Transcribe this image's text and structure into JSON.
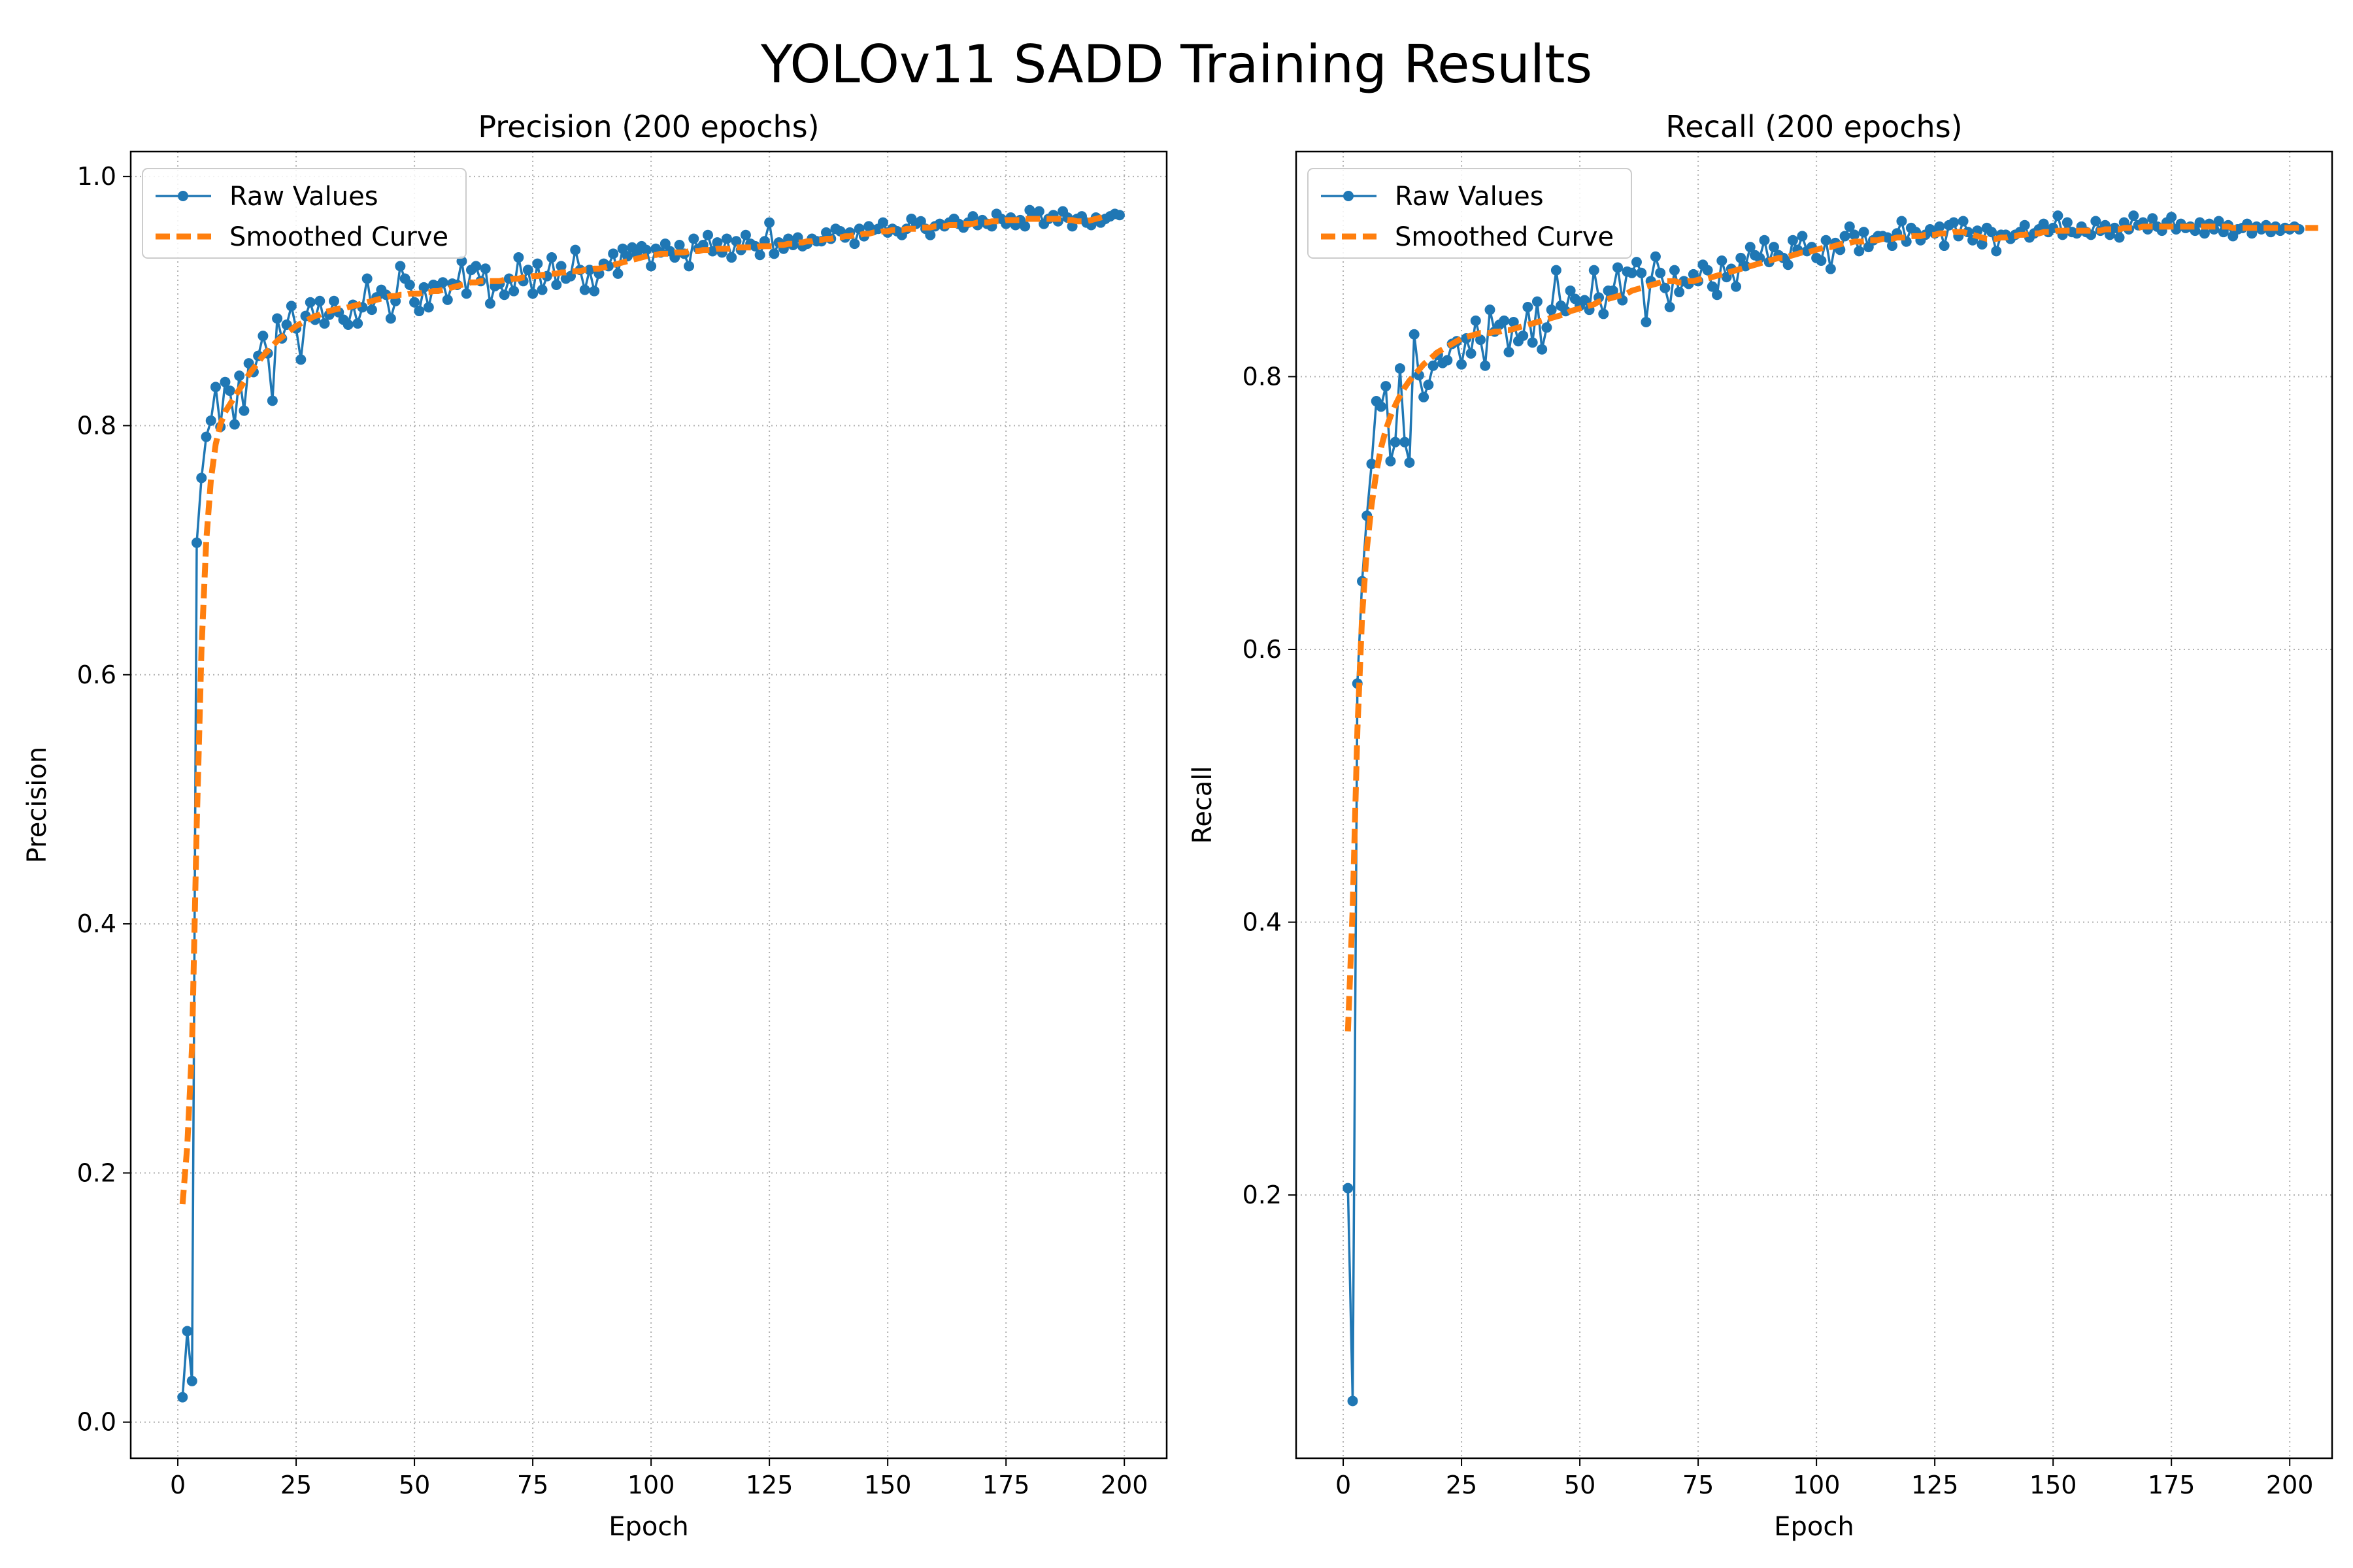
{
  "figure": {
    "title": "YOLOv11 SADD Training Results"
  },
  "colors": {
    "raw": "#1f77b4",
    "smoothed": "#ff7f0e",
    "grid": "#b0b0b0"
  },
  "chart_data": [
    {
      "type": "line",
      "title": "Precision (200 epochs)",
      "xlabel": "Epoch",
      "ylabel": "Precision",
      "xlim": [
        -9.95,
        208.95
      ],
      "ylim": [
        -0.029,
        1.02
      ],
      "xticks": [
        0,
        25,
        50,
        75,
        100,
        125,
        150,
        175,
        200
      ],
      "yticks": [
        0.0,
        0.2,
        0.4,
        0.6,
        0.8,
        1.0
      ],
      "ytick_labels": [
        "0.0",
        "0.2",
        "0.4",
        "0.6",
        "0.8",
        "1.0"
      ],
      "grid": true,
      "legend": "top-left",
      "series": [
        {
          "name": "Raw Values",
          "style": "line-markers",
          "x_start": 1,
          "x_step": 1,
          "values": [
            0.02,
            0.073,
            0.033,
            0.706,
            0.758,
            0.791,
            0.804,
            0.831,
            0.799,
            0.835,
            0.828,
            0.801,
            0.84,
            0.812,
            0.85,
            0.843,
            0.856,
            0.872,
            0.858,
            0.82,
            0.886,
            0.87,
            0.881,
            0.896,
            0.878,
            0.853,
            0.888,
            0.899,
            0.885,
            0.9,
            0.882,
            0.889,
            0.9,
            0.891,
            0.885,
            0.881,
            0.897,
            0.882,
            0.895,
            0.918,
            0.893,
            0.903,
            0.909,
            0.905,
            0.886,
            0.9,
            0.928,
            0.918,
            0.913,
            0.899,
            0.892,
            0.911,
            0.895,
            0.913,
            0.912,
            0.915,
            0.901,
            0.914,
            0.913,
            0.932,
            0.906,
            0.925,
            0.928,
            0.916,
            0.926,
            0.898,
            0.912,
            0.914,
            0.905,
            0.918,
            0.908,
            0.935,
            0.916,
            0.925,
            0.906,
            0.93,
            0.909,
            0.92,
            0.935,
            0.913,
            0.928,
            0.918,
            0.92,
            0.941,
            0.925,
            0.909,
            0.925,
            0.908,
            0.922,
            0.93,
            0.928,
            0.938,
            0.922,
            0.942,
            0.936,
            0.943,
            0.938,
            0.944,
            0.941,
            0.928,
            0.942,
            0.939,
            0.946,
            0.94,
            0.935,
            0.945,
            0.938,
            0.928,
            0.95,
            0.942,
            0.945,
            0.953,
            0.94,
            0.947,
            0.939,
            0.95,
            0.935,
            0.948,
            0.941,
            0.953,
            0.946,
            0.944,
            0.937,
            0.948,
            0.963,
            0.938,
            0.947,
            0.942,
            0.95,
            0.945,
            0.951,
            0.944,
            0.946,
            0.95,
            0.948,
            0.948,
            0.955,
            0.95,
            0.958,
            0.956,
            0.951,
            0.955,
            0.946,
            0.958,
            0.952,
            0.96,
            0.957,
            0.958,
            0.963,
            0.955,
            0.958,
            0.956,
            0.953,
            0.958,
            0.966,
            0.962,
            0.964,
            0.958,
            0.953,
            0.96,
            0.962,
            0.96,
            0.963,
            0.966,
            0.962,
            0.959,
            0.963,
            0.968,
            0.961,
            0.965,
            0.962,
            0.96,
            0.97,
            0.966,
            0.962,
            0.967,
            0.961,
            0.965,
            0.96,
            0.973,
            0.968,
            0.972,
            0.962,
            0.966,
            0.969,
            0.964,
            0.972,
            0.967,
            0.96,
            0.966,
            0.968,
            0.963,
            0.961,
            0.967,
            0.963,
            0.966,
            0.968,
            0.97,
            0.969
          ]
        },
        {
          "name": "Smoothed Curve",
          "style": "dashed",
          "x_start": 1,
          "x_step": 1,
          "values": [
            0.175,
            0.222,
            0.301,
            0.48,
            0.62,
            0.707,
            0.757,
            0.785,
            0.801,
            0.811,
            0.817,
            0.823,
            0.829,
            0.835,
            0.841,
            0.846,
            0.851,
            0.856,
            0.86,
            0.864,
            0.868,
            0.871,
            0.874,
            0.877,
            0.88,
            0.882,
            0.884,
            0.886,
            0.888,
            0.889,
            0.891,
            0.892,
            0.893,
            0.894,
            0.894,
            0.895,
            0.896,
            0.897,
            0.898,
            0.899,
            0.9,
            0.901,
            0.902,
            0.903,
            0.904,
            0.904,
            0.905,
            0.905,
            0.906,
            0.906,
            0.906,
            0.907,
            0.907,
            0.908,
            0.908,
            0.909,
            0.91,
            0.911,
            0.912,
            0.913,
            0.914,
            0.915,
            0.915,
            0.916,
            0.916,
            0.916,
            0.916,
            0.916,
            0.917,
            0.917,
            0.918,
            0.918,
            0.919,
            0.919,
            0.92,
            0.92,
            0.921,
            0.921,
            0.922,
            0.922,
            0.923,
            0.923,
            0.924,
            0.924,
            0.924,
            0.925,
            0.925,
            0.926,
            0.926,
            0.927,
            0.928,
            0.929,
            0.93,
            0.931,
            0.932,
            0.933,
            0.934,
            0.935,
            0.936,
            0.937,
            0.937,
            0.938,
            0.938,
            0.938,
            0.939,
            0.939,
            0.939,
            0.94,
            0.94,
            0.94,
            0.941,
            0.941,
            0.941,
            0.942,
            0.942,
            0.942,
            0.942,
            0.943,
            0.943,
            0.943,
            0.943,
            0.943,
            0.944,
            0.944,
            0.944,
            0.944,
            0.945,
            0.945,
            0.946,
            0.946,
            0.947,
            0.947,
            0.948,
            0.948,
            0.949,
            0.949,
            0.95,
            0.95,
            0.951,
            0.951,
            0.952,
            0.952,
            0.953,
            0.953,
            0.954,
            0.954,
            0.955,
            0.955,
            0.956,
            0.956,
            0.957,
            0.957,
            0.957,
            0.958,
            0.958,
            0.958,
            0.959,
            0.959,
            0.959,
            0.96,
            0.96,
            0.96,
            0.961,
            0.961,
            0.961,
            0.962,
            0.962,
            0.962,
            0.963,
            0.963,
            0.963,
            0.964,
            0.964,
            0.964,
            0.965,
            0.965,
            0.965,
            0.965,
            0.966,
            0.966,
            0.966,
            0.966,
            0.966,
            0.966,
            0.966,
            0.966,
            0.966,
            0.965,
            0.965,
            0.964,
            0.964,
            0.964,
            0.965,
            0.966,
            0.967,
            0.968
          ]
        }
      ]
    },
    {
      "type": "line",
      "title": "Recall (200 epochs)",
      "xlabel": "Epoch",
      "ylabel": "Recall",
      "xlim": [
        -9.95,
        208.95
      ],
      "ylim": [
        0.007,
        0.965
      ],
      "xticks": [
        0,
        25,
        50,
        75,
        100,
        125,
        150,
        175,
        200
      ],
      "yticks": [
        0.2,
        0.4,
        0.6,
        0.8
      ],
      "ytick_labels": [
        "0.2",
        "0.4",
        "0.6",
        "0.8"
      ],
      "grid": true,
      "legend": "top-left",
      "series": [
        {
          "name": "Raw Values",
          "style": "line-markers",
          "x_start": 1,
          "x_step": 1,
          "values": [
            0.205,
            0.049,
            0.575,
            0.65,
            0.698,
            0.736,
            0.782,
            0.778,
            0.793,
            0.738,
            0.752,
            0.806,
            0.752,
            0.737,
            0.831,
            0.801,
            0.785,
            0.794,
            0.808,
            0.816,
            0.81,
            0.812,
            0.824,
            0.826,
            0.809,
            0.828,
            0.817,
            0.841,
            0.827,
            0.808,
            0.849,
            0.833,
            0.838,
            0.841,
            0.818,
            0.84,
            0.826,
            0.83,
            0.851,
            0.825,
            0.855,
            0.82,
            0.836,
            0.849,
            0.878,
            0.852,
            0.848,
            0.863,
            0.857,
            0.852,
            0.856,
            0.849,
            0.878,
            0.858,
            0.846,
            0.863,
            0.863,
            0.88,
            0.856,
            0.877,
            0.876,
            0.884,
            0.876,
            0.84,
            0.87,
            0.888,
            0.876,
            0.865,
            0.851,
            0.878,
            0.862,
            0.87,
            0.868,
            0.875,
            0.87,
            0.882,
            0.878,
            0.866,
            0.86,
            0.885,
            0.873,
            0.879,
            0.866,
            0.887,
            0.881,
            0.895,
            0.889,
            0.887,
            0.9,
            0.884,
            0.895,
            0.889,
            0.887,
            0.882,
            0.9,
            0.893,
            0.903,
            0.892,
            0.895,
            0.887,
            0.885,
            0.9,
            0.879,
            0.898,
            0.893,
            0.903,
            0.91,
            0.904,
            0.892,
            0.906,
            0.895,
            0.9,
            0.903,
            0.903,
            0.902,
            0.896,
            0.905,
            0.914,
            0.899,
            0.909,
            0.906,
            0.9,
            0.904,
            0.908,
            0.905,
            0.91,
            0.896,
            0.911,
            0.913,
            0.903,
            0.914,
            0.906,
            0.9,
            0.907,
            0.897,
            0.909,
            0.906,
            0.892,
            0.904,
            0.904,
            0.901,
            0.904,
            0.906,
            0.911,
            0.902,
            0.905,
            0.908,
            0.912,
            0.906,
            0.909,
            0.918,
            0.904,
            0.913,
            0.906,
            0.905,
            0.91,
            0.906,
            0.904,
            0.914,
            0.907,
            0.911,
            0.904,
            0.909,
            0.902,
            0.913,
            0.908,
            0.918,
            0.911,
            0.913,
            0.908,
            0.916,
            0.91,
            0.907,
            0.913,
            0.917,
            0.908,
            0.912,
            0.909,
            0.91,
            0.907,
            0.913,
            0.905,
            0.912,
            0.908,
            0.914,
            0.906,
            0.911,
            0.903,
            0.908,
            0.909,
            0.912,
            0.905,
            0.91,
            0.908,
            0.911,
            0.906,
            0.91,
            0.907,
            0.909,
            0.908,
            0.91,
            0.908
          ]
        },
        {
          "name": "Smoothed Curve",
          "style": "dashed",
          "x_start": 1,
          "x_step": 1,
          "values": [
            0.32,
            0.41,
            0.541,
            0.625,
            0.674,
            0.706,
            0.73,
            0.748,
            0.761,
            0.771,
            0.779,
            0.786,
            0.792,
            0.797,
            0.801,
            0.805,
            0.809,
            0.812,
            0.815,
            0.818,
            0.82,
            0.822,
            0.824,
            0.826,
            0.828,
            0.829,
            0.83,
            0.831,
            0.832,
            0.832,
            0.832,
            0.833,
            0.833,
            0.834,
            0.834,
            0.835,
            0.836,
            0.837,
            0.838,
            0.839,
            0.84,
            0.841,
            0.842,
            0.843,
            0.844,
            0.845,
            0.846,
            0.848,
            0.849,
            0.85,
            0.851,
            0.852,
            0.853,
            0.855,
            0.856,
            0.857,
            0.858,
            0.859,
            0.86,
            0.861,
            0.863,
            0.864,
            0.865,
            0.866,
            0.867,
            0.868,
            0.869,
            0.87,
            0.87,
            0.87,
            0.869,
            0.869,
            0.87,
            0.87,
            0.871,
            0.872,
            0.872,
            0.873,
            0.874,
            0.875,
            0.876,
            0.877,
            0.878,
            0.879,
            0.88,
            0.881,
            0.882,
            0.883,
            0.884,
            0.885,
            0.886,
            0.887,
            0.887,
            0.888,
            0.889,
            0.89,
            0.891,
            0.891,
            0.892,
            0.893,
            0.894,
            0.895,
            0.895,
            0.896,
            0.897,
            0.898,
            0.898,
            0.899,
            0.899,
            0.899,
            0.9,
            0.9,
            0.9,
            0.901,
            0.901,
            0.901,
            0.902,
            0.902,
            0.902,
            0.903,
            0.903,
            0.903,
            0.904,
            0.904,
            0.904,
            0.905,
            0.905,
            0.905,
            0.906,
            0.906,
            0.906,
            0.905,
            0.904,
            0.903,
            0.902,
            0.901,
            0.901,
            0.901,
            0.902,
            0.902,
            0.903,
            0.903,
            0.904,
            0.904,
            0.905,
            0.905,
            0.905,
            0.906,
            0.906,
            0.906,
            0.907,
            0.907,
            0.907,
            0.907,
            0.907,
            0.907,
            0.907,
            0.907,
            0.907,
            0.907,
            0.908,
            0.908,
            0.908,
            0.908,
            0.909,
            0.909,
            0.909,
            0.909,
            0.91,
            0.91,
            0.91,
            0.91,
            0.91,
            0.91,
            0.91,
            0.91,
            0.91,
            0.91,
            0.91,
            0.91,
            0.91,
            0.91,
            0.91,
            0.91,
            0.91,
            0.91,
            0.91,
            0.909,
            0.909,
            0.909,
            0.909,
            0.909,
            0.909,
            0.909,
            0.909,
            0.909,
            0.909,
            0.909,
            0.909,
            0.909,
            0.909,
            0.909,
            0.909,
            0.909,
            0.909,
            0.909
          ]
        }
      ]
    }
  ]
}
